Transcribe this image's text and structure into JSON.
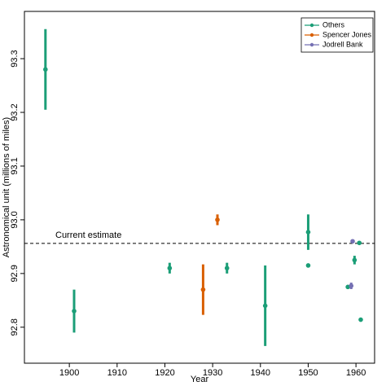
{
  "chart_data": {
    "type": "errorbar",
    "x_label": "Year",
    "y_label": "Astronomical unit (millions of miles)",
    "xlim": [
      1890.6,
      1963.9
    ],
    "xticks": [
      1900,
      1910,
      1920,
      1930,
      1940,
      1950,
      1960
    ],
    "ylim": [
      92.733,
      93.388
    ],
    "yticks": [
      92.8,
      92.9,
      {
        "value": 93,
        "label": "93.0"
      },
      93.1,
      93.2,
      93.3
    ],
    "reference": {
      "value": 92.956,
      "label": "Current estimate"
    },
    "legend": "top-right",
    "series": [
      {
        "name": "Others",
        "color": "#1b9e77",
        "x": [
          1895,
          1901,
          1921,
          1933,
          1941,
          1950,
          1950,
          1958.3,
          1959.7,
          1960.7,
          1961
        ],
        "values": [
          93.28,
          92.83,
          92.91,
          92.91,
          92.84,
          92.977,
          92.915,
          92.875,
          92.925,
          92.957,
          92.814
        ],
        "errors": [
          0.075,
          0.04,
          0.01,
          0.01,
          0.075,
          0.033,
          0.003,
          0.003,
          0.008,
          0.002,
          0.002
        ]
      },
      {
        "name": "Spencer Jones",
        "color": "#d95f02",
        "x": [
          1928,
          1931
        ],
        "values": [
          92.87,
          93.0
        ],
        "errors": [
          0.047,
          0.01
        ]
      },
      {
        "name": "Jodrell Bank",
        "color": "#7570b3",
        "x": [
          1959,
          1959.3
        ],
        "values": [
          92.877,
          92.96
        ],
        "errors": [
          0.006,
          0.002
        ]
      }
    ]
  }
}
